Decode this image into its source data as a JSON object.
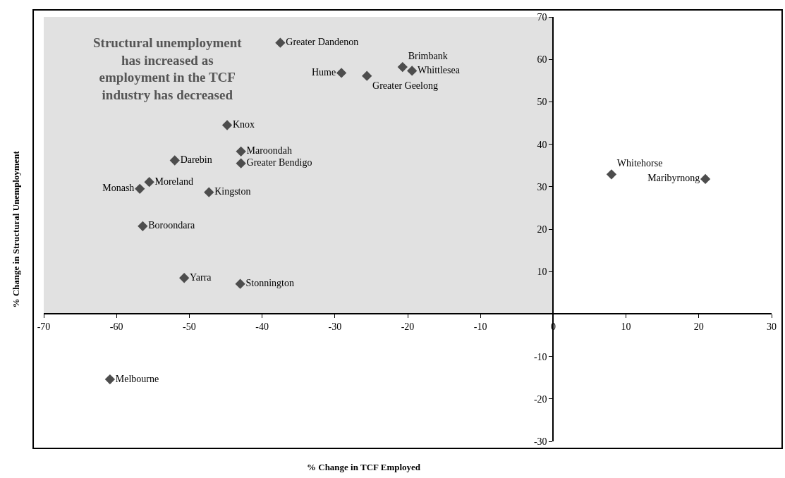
{
  "chart_data": {
    "type": "scatter",
    "xlabel": "% Change in TCF Employed",
    "ylabel": "% Change in Structural Unemployment",
    "annotations": [
      "Structural unemployment has increased as employment in the TCF industry has decreased"
    ],
    "xlim": [
      -70,
      30
    ],
    "xticks": [
      -70,
      -60,
      -50,
      -40,
      -30,
      -20,
      -10,
      0,
      10,
      20,
      30
    ],
    "ylim": [
      -30,
      70
    ],
    "yticks": [
      -30,
      -20,
      -10,
      10,
      20,
      30,
      40,
      50,
      60,
      70
    ],
    "bands": [
      {
        "axis": "x",
        "from": -70,
        "to": 0,
        "color": "#e1e1e1"
      }
    ],
    "marker": "diamond",
    "grid": false,
    "series": [
      {
        "name": "Greater Dandenon",
        "color": "#4d4d4d",
        "x": [
          -37.5
        ],
        "values": [
          63.9
        ]
      },
      {
        "name": "Hume",
        "color": "#4d4d4d",
        "x": [
          -29.1
        ],
        "values": [
          56.8
        ]
      },
      {
        "name": "Greater Geelong",
        "color": "#4d4d4d",
        "x": [
          -25.6
        ],
        "values": [
          56.1
        ]
      },
      {
        "name": "Brimbank",
        "color": "#4d4d4d",
        "x": [
          -20.7
        ],
        "values": [
          58.2
        ]
      },
      {
        "name": "Whittlesea",
        "color": "#4d4d4d",
        "x": [
          -19.4
        ],
        "values": [
          57.3
        ]
      },
      {
        "name": "Knox",
        "color": "#4d4d4d",
        "x": [
          -44.8
        ],
        "values": [
          44.5
        ]
      },
      {
        "name": "Maroondah",
        "color": "#4d4d4d",
        "x": [
          -42.9
        ],
        "values": [
          38.3
        ]
      },
      {
        "name": "Greater Bendigo",
        "color": "#4d4d4d",
        "x": [
          -42.9
        ],
        "values": [
          35.5
        ]
      },
      {
        "name": "Darebin",
        "color": "#4d4d4d",
        "x": [
          -52.0
        ],
        "values": [
          36.2
        ]
      },
      {
        "name": "Moreland",
        "color": "#4d4d4d",
        "x": [
          -55.5
        ],
        "values": [
          31.1
        ]
      },
      {
        "name": "Monash",
        "color": "#4d4d4d",
        "x": [
          -56.8
        ],
        "values": [
          29.5
        ]
      },
      {
        "name": "Kingston",
        "color": "#4d4d4d",
        "x": [
          -47.3
        ],
        "values": [
          28.7
        ]
      },
      {
        "name": "Boroondara",
        "color": "#4d4d4d",
        "x": [
          -56.4
        ],
        "values": [
          20.7
        ]
      },
      {
        "name": "Yarra",
        "color": "#4d4d4d",
        "x": [
          -50.7
        ],
        "values": [
          8.5
        ]
      },
      {
        "name": "Stonnington",
        "color": "#4d4d4d",
        "x": [
          -43.0
        ],
        "values": [
          7.1
        ]
      },
      {
        "name": "Whitehorse",
        "color": "#4d4d4d",
        "x": [
          8.0
        ],
        "values": [
          32.9
        ]
      },
      {
        "name": "Maribyrnong",
        "color": "#4d4d4d",
        "x": [
          20.9
        ],
        "values": [
          31.8
        ]
      },
      {
        "name": "Melbourne",
        "color": "#4d4d4d",
        "x": [
          -60.9
        ],
        "values": [
          -15.4
        ]
      }
    ]
  }
}
